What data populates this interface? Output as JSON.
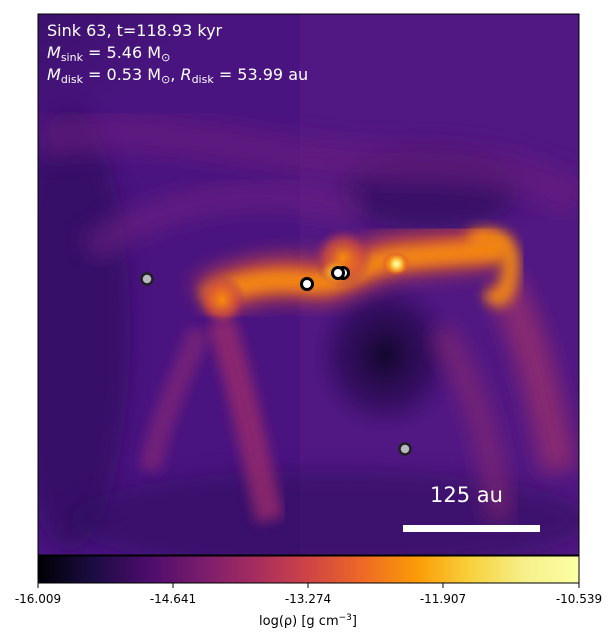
{
  "annotation": {
    "sink_line": "Sink 63, t=118.93 kyr",
    "mass_label": "M",
    "mass_sub": "sink",
    "mass_value": "= 5.46 M",
    "mass_unit_sub": "⊙",
    "disk_mass_label": "M",
    "disk_mass_sub": "disk",
    "disk_mass_value": "= 0.53 M",
    "disk_mass_unit_sub": "⊙",
    "disk_radius_sep": ", ",
    "disk_radius_label": "R",
    "disk_radius_sub": "disk",
    "disk_radius_value": "= 53.99 au"
  },
  "scale_bar": {
    "label": "125 au"
  },
  "colorbar": {
    "ticks": [
      "-16.009",
      "-14.641",
      "-13.274",
      "-11.907",
      "-10.539"
    ],
    "label_prefix": "log(ρ) [g cm",
    "label_exp": "−3",
    "label_suffix": "]",
    "colormap": "inferno"
  },
  "sinks": [
    {
      "kind": "companion"
    },
    {
      "kind": "primary"
    },
    {
      "kind": "primary"
    },
    {
      "kind": "companion"
    }
  ],
  "colors": {
    "background_density": "#4a1480",
    "filament": "#f98c0a",
    "peak": "#fcffa4",
    "void": "#1a0b40"
  }
}
